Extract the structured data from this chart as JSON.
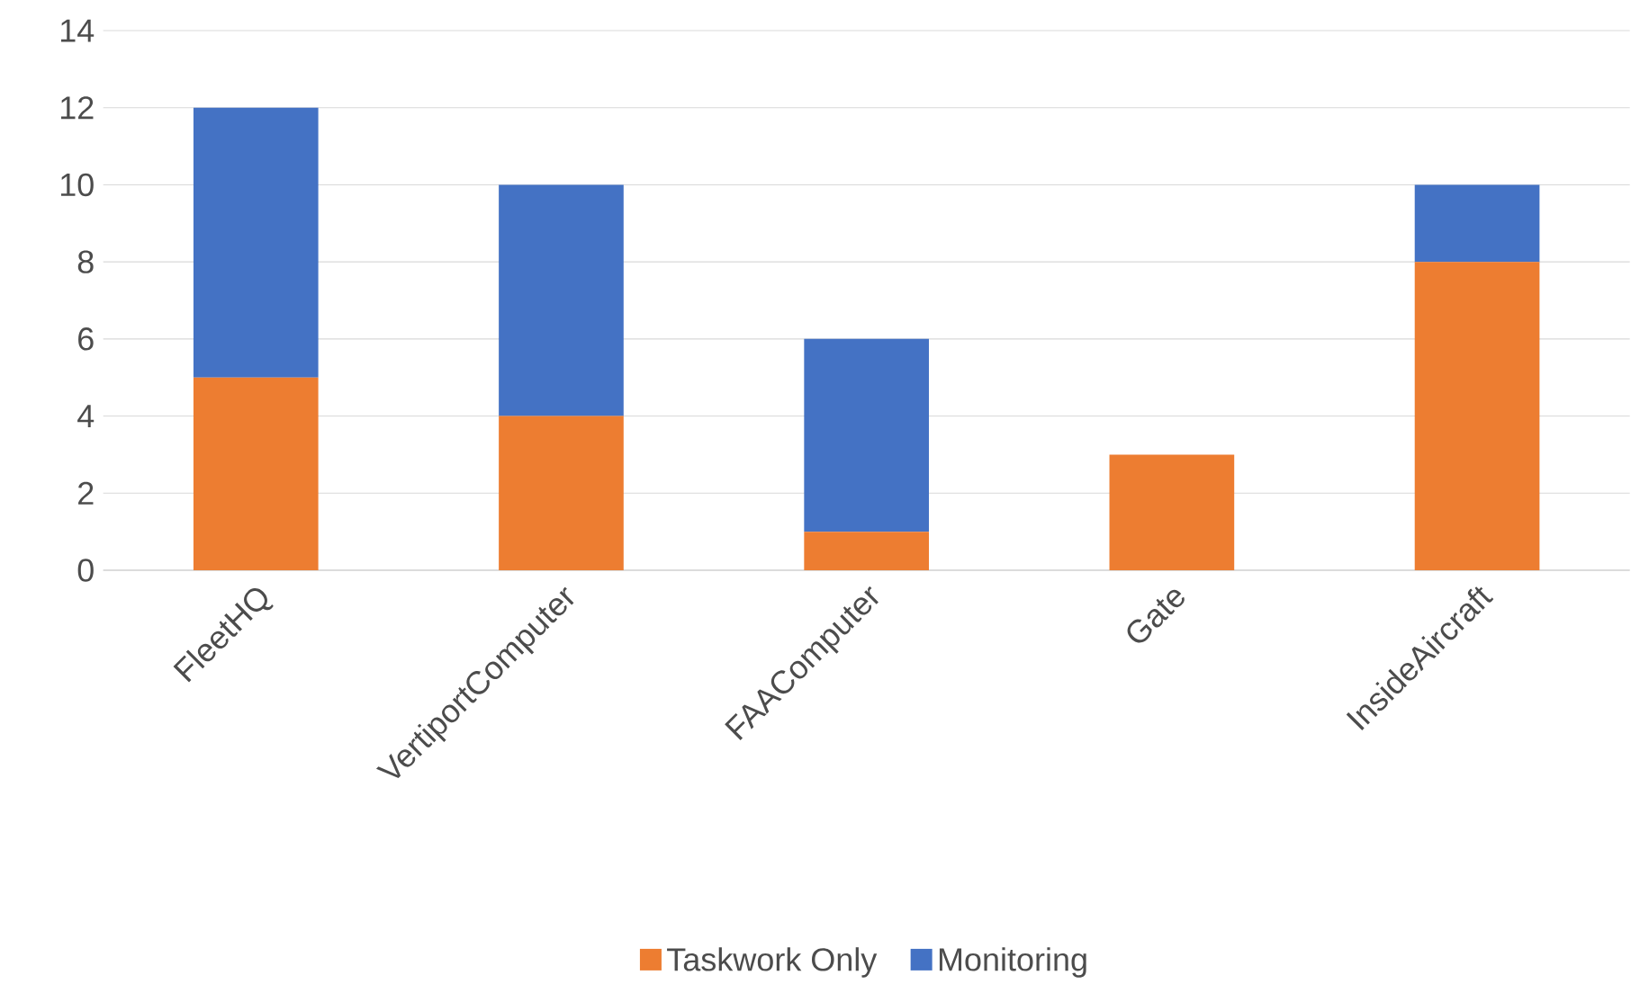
{
  "chart_data": {
    "type": "bar",
    "stacked": true,
    "categories": [
      "FleetHQ",
      "VertiportComputer",
      "FAAComputer",
      "Gate",
      "InsideAircraft"
    ],
    "series": [
      {
        "name": "Taskwork Only",
        "color": "#ed7d31",
        "values": [
          5,
          4,
          1,
          3,
          8
        ]
      },
      {
        "name": "Monitoring",
        "color": "#4472c4",
        "values": [
          7,
          6,
          5,
          0,
          2
        ]
      }
    ],
    "ylim": [
      0,
      14
    ],
    "yticks": [
      0,
      2,
      4,
      6,
      8,
      10,
      12,
      14
    ],
    "grid": "y",
    "legend": "bottom"
  }
}
